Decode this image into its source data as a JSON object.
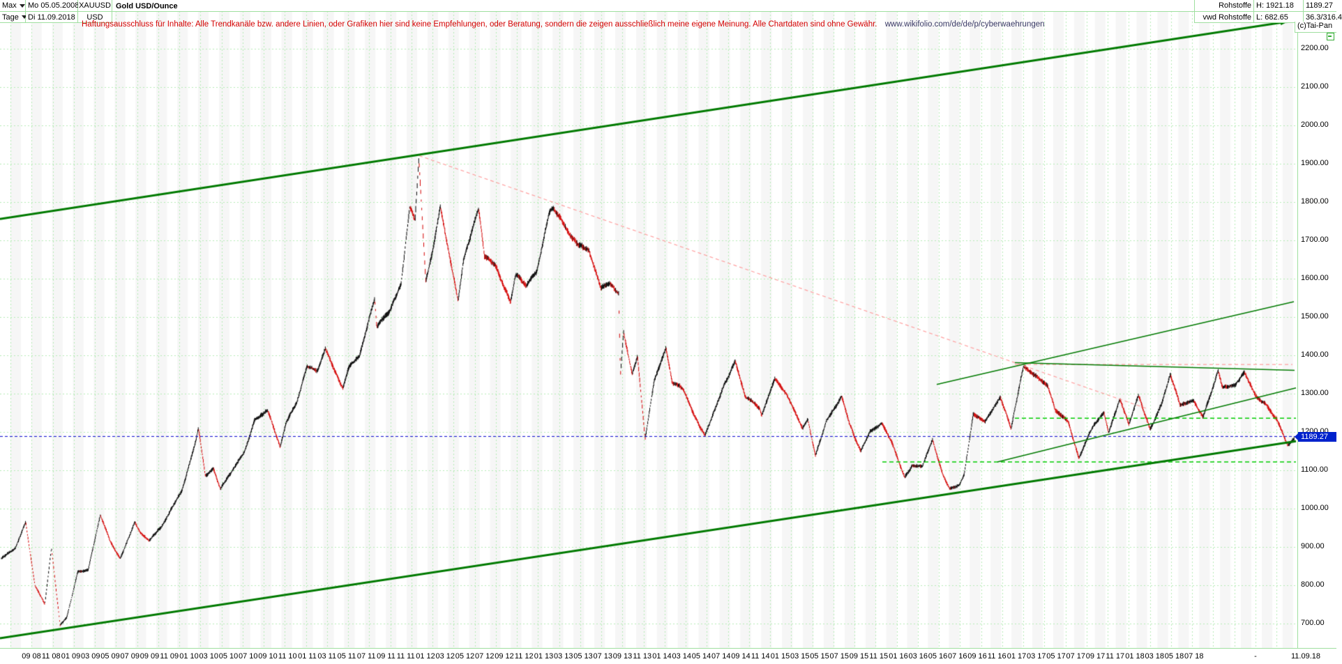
{
  "header": {
    "range_selector": "Max",
    "period_selector": "Tage",
    "date_from": "Mo 05.05.2008",
    "date_to": "Di 11.09.2018",
    "symbol": "XAUUSD",
    "currency": "USD",
    "instrument_name": "Gold USD/Ounce",
    "category": "Rohstoffe",
    "provider": "vwd Rohstoffe",
    "high_label": "H: 1921.18",
    "low_label": "L: 682.65",
    "last_price": "1189.27",
    "tick_info": "36.3/316.4",
    "copyright": "(c)Tai-Pan"
  },
  "disclaimer": {
    "text": "Haftungsausschluss für Inhalte: Alle Trendkanäle bzw. andere Linien, oder Grafiken hier sind keine Empfehlungen, oder Beratung, sondern die zeigen ausschließlich meine eigene Meinung. Alle Chartdaten sind ohne Gewähr.",
    "url": "www.wikifolio.com/de/de/p/cyberwaehrungen"
  },
  "price_axis": {
    "labels": [
      "2200.00",
      "2100.00",
      "2000.00",
      "1900.00",
      "1800.00",
      "1700.00",
      "1600.00",
      "1500.00",
      "1400.00",
      "1300.00",
      "1200.00",
      "1100.00",
      "1000.00",
      "900.00",
      "800.00",
      "700.00"
    ],
    "tag": "1189.27"
  },
  "time_axis": {
    "labels": [
      "09 08",
      "11 08",
      "01 09",
      "03 09",
      "05 09",
      "07 09",
      "09 09",
      "11 09",
      "01 10",
      "03 10",
      "05 10",
      "07 10",
      "09 10",
      "11 10",
      "01 11",
      "03 11",
      "05 11",
      "07 11",
      "09 11",
      "11 11",
      "01 12",
      "03 12",
      "05 12",
      "07 12",
      "09 12",
      "11 12",
      "01 13",
      "03 13",
      "05 13",
      "07 13",
      "09 13",
      "11 13",
      "01 14",
      "03 14",
      "05 14",
      "07 14",
      "09 14",
      "11 14",
      "01 15",
      "03 15",
      "05 15",
      "07 15",
      "09 15",
      "11 15",
      "01 16",
      "03 16",
      "05 16",
      "07 16",
      "09 16",
      "11 16",
      "01 17",
      "03 17",
      "05 17",
      "07 17",
      "09 17",
      "11 17",
      "01 18",
      "03 18",
      "05 18",
      "07 18"
    ],
    "separator": "-",
    "end_date": "11.09.18"
  },
  "chart_data": {
    "type": "bar",
    "subtype": "daily-ohlc-bars",
    "title": "Gold USD/Ounce (XAUUSD), Tage, 05.05.2008 - 11.09.2018",
    "high": 1921.18,
    "low": 682.65,
    "last": 1189.27,
    "ylim": [
      660,
      2290
    ],
    "y_gridstep": 100,
    "grid": true,
    "colors": {
      "up_bar": "#000000",
      "down_bar": "#d40000",
      "grid": "#b5ecb5",
      "stripe": "#f6f6f6",
      "trend_green": "#007a00",
      "bright_green_dash": "#00cc00",
      "pink_dash": "#ff9f9f",
      "blue_dash": "#0000cc",
      "tag_bg": "#0022cc"
    },
    "anchors": [
      [
        "2008-05-05",
        870
      ],
      [
        "2008-06-15",
        895
      ],
      [
        "2008-07-15",
        965
      ],
      [
        "2008-08-12",
        800
      ],
      [
        "2008-09-10",
        750
      ],
      [
        "2008-09-29",
        895
      ],
      [
        "2008-10-24",
        695
      ],
      [
        "2008-11-13",
        715
      ],
      [
        "2008-12-15",
        835
      ],
      [
        "2009-01-15",
        840
      ],
      [
        "2009-02-20",
        985
      ],
      [
        "2009-03-18",
        915
      ],
      [
        "2009-04-17",
        870
      ],
      [
        "2009-05-29",
        965
      ],
      [
        "2009-06-15",
        935
      ],
      [
        "2009-07-10",
        915
      ],
      [
        "2009-08-15",
        950
      ],
      [
        "2009-09-15",
        1000
      ],
      [
        "2009-10-15",
        1050
      ],
      [
        "2009-11-25",
        1180
      ],
      [
        "2009-12-02",
        1210
      ],
      [
        "2009-12-22",
        1085
      ],
      [
        "2010-01-15",
        1110
      ],
      [
        "2010-02-05",
        1055
      ],
      [
        "2010-03-15",
        1110
      ],
      [
        "2010-04-15",
        1150
      ],
      [
        "2010-05-14",
        1230
      ],
      [
        "2010-06-21",
        1255
      ],
      [
        "2010-07-27",
        1160
      ],
      [
        "2010-08-15",
        1225
      ],
      [
        "2010-09-15",
        1275
      ],
      [
        "2010-10-14",
        1375
      ],
      [
        "2010-11-15",
        1360
      ],
      [
        "2010-12-07",
        1420
      ],
      [
        "2011-01-27",
        1315
      ],
      [
        "2011-02-15",
        1375
      ],
      [
        "2011-03-15",
        1400
      ],
      [
        "2011-04-29",
        1555
      ],
      [
        "2011-05-05",
        1480
      ],
      [
        "2011-06-15",
        1525
      ],
      [
        "2011-07-15",
        1590
      ],
      [
        "2011-08-10",
        1790
      ],
      [
        "2011-08-25",
        1755
      ],
      [
        "2011-09-06",
        1915
      ],
      [
        "2011-09-26",
        1590
      ],
      [
        "2011-10-15",
        1670
      ],
      [
        "2011-11-08",
        1790
      ],
      [
        "2011-12-29",
        1545
      ],
      [
        "2012-01-15",
        1650
      ],
      [
        "2012-02-28",
        1780
      ],
      [
        "2012-03-15",
        1660
      ],
      [
        "2012-04-15",
        1640
      ],
      [
        "2012-05-30",
        1540
      ],
      [
        "2012-06-15",
        1610
      ],
      [
        "2012-07-15",
        1580
      ],
      [
        "2012-08-15",
        1620
      ],
      [
        "2012-09-21",
        1775
      ],
      [
        "2012-10-04",
        1790
      ],
      [
        "2012-11-15",
        1725
      ],
      [
        "2012-12-15",
        1690
      ],
      [
        "2013-01-15",
        1675
      ],
      [
        "2013-02-20",
        1580
      ],
      [
        "2013-03-15",
        1590
      ],
      [
        "2013-04-11",
        1560
      ],
      [
        "2013-04-16",
        1345
      ],
      [
        "2013-04-25",
        1460
      ],
      [
        "2013-05-20",
        1355
      ],
      [
        "2013-06-05",
        1400
      ],
      [
        "2013-06-27",
        1185
      ],
      [
        "2013-07-23",
        1335
      ],
      [
        "2013-08-27",
        1420
      ],
      [
        "2013-09-15",
        1330
      ],
      [
        "2013-10-15",
        1315
      ],
      [
        "2013-11-15",
        1250
      ],
      [
        "2013-12-19",
        1190
      ],
      [
        "2014-01-15",
        1250
      ],
      [
        "2014-02-15",
        1320
      ],
      [
        "2014-03-16",
        1385
      ],
      [
        "2014-04-15",
        1295
      ],
      [
        "2014-05-27",
        1265
      ],
      [
        "2014-06-02",
        1245
      ],
      [
        "2014-07-10",
        1335
      ],
      [
        "2014-08-15",
        1295
      ],
      [
        "2014-09-30",
        1210
      ],
      [
        "2014-10-15",
        1230
      ],
      [
        "2014-11-07",
        1140
      ],
      [
        "2014-12-09",
        1230
      ],
      [
        "2015-01-22",
        1295
      ],
      [
        "2015-02-15",
        1225
      ],
      [
        "2015-03-17",
        1150
      ],
      [
        "2015-04-15",
        1200
      ],
      [
        "2015-05-18",
        1225
      ],
      [
        "2015-06-15",
        1180
      ],
      [
        "2015-07-24",
        1085
      ],
      [
        "2015-08-15",
        1115
      ],
      [
        "2015-09-15",
        1110
      ],
      [
        "2015-10-14",
        1180
      ],
      [
        "2015-11-15",
        1085
      ],
      [
        "2015-12-03",
        1050
      ],
      [
        "2015-12-31",
        1060
      ],
      [
        "2016-01-15",
        1090
      ],
      [
        "2016-02-11",
        1245
      ],
      [
        "2016-03-15",
        1230
      ],
      [
        "2016-04-29",
        1290
      ],
      [
        "2016-05-30",
        1205
      ],
      [
        "2016-06-24",
        1320
      ],
      [
        "2016-07-06",
        1370
      ],
      [
        "2016-08-15",
        1340
      ],
      [
        "2016-09-15",
        1320
      ],
      [
        "2016-10-07",
        1255
      ],
      [
        "2016-11-15",
        1225
      ],
      [
        "2016-12-15",
        1130
      ],
      [
        "2017-01-15",
        1195
      ],
      [
        "2017-02-27",
        1255
      ],
      [
        "2017-03-10",
        1200
      ],
      [
        "2017-04-13",
        1285
      ],
      [
        "2017-05-09",
        1220
      ],
      [
        "2017-06-06",
        1295
      ],
      [
        "2017-07-10",
        1210
      ],
      [
        "2017-08-15",
        1280
      ],
      [
        "2017-09-08",
        1350
      ],
      [
        "2017-10-06",
        1270
      ],
      [
        "2017-11-15",
        1280
      ],
      [
        "2017-12-12",
        1240
      ],
      [
        "2018-01-25",
        1360
      ],
      [
        "2018-02-08",
        1315
      ],
      [
        "2018-03-15",
        1320
      ],
      [
        "2018-04-11",
        1355
      ],
      [
        "2018-05-15",
        1290
      ],
      [
        "2018-06-15",
        1270
      ],
      [
        "2018-07-15",
        1230
      ],
      [
        "2018-08-16",
        1165
      ],
      [
        "2018-09-11",
        1189.27
      ]
    ],
    "trend_lines": [
      {
        "name": "upper-channel",
        "x1": 0,
        "p1": 1756,
        "x2": 1846,
        "p2": 2271,
        "width": 3,
        "arrow": true
      },
      {
        "name": "lower-channel",
        "x1": 0,
        "p1": 662,
        "x2": 1858,
        "p2": 1176,
        "width": 3,
        "arrow": false
      },
      {
        "name": "mid-uptrend",
        "x1": 1343,
        "p1": 1324,
        "x2": 1855,
        "p2": 1540,
        "width": 1.5,
        "arrow": false
      },
      {
        "name": "top-resistance",
        "x1": 1455,
        "p1": 1381,
        "x2": 1856,
        "p2": 1361,
        "width": 1.5,
        "arrow": false
      },
      {
        "name": "rising-support",
        "x1": 1430,
        "p1": 1122,
        "x2": 1858,
        "p2": 1315,
        "width": 1.5,
        "arrow": false
      }
    ],
    "green_dashed_levels": [
      {
        "price": 1236,
        "x1": 1455,
        "x2": 1858
      },
      {
        "price": 1122,
        "x1": 1265,
        "x2": 1858
      }
    ],
    "pink_dashed_lines": [
      {
        "x1": 601,
        "p1": 1921,
        "x2": 1646,
        "p2": 1260
      },
      {
        "x1": 1455,
        "p1": 1376,
        "x2": 1853,
        "p2": 1376
      }
    ],
    "last_price_line": {
      "price": 1189.27
    }
  }
}
